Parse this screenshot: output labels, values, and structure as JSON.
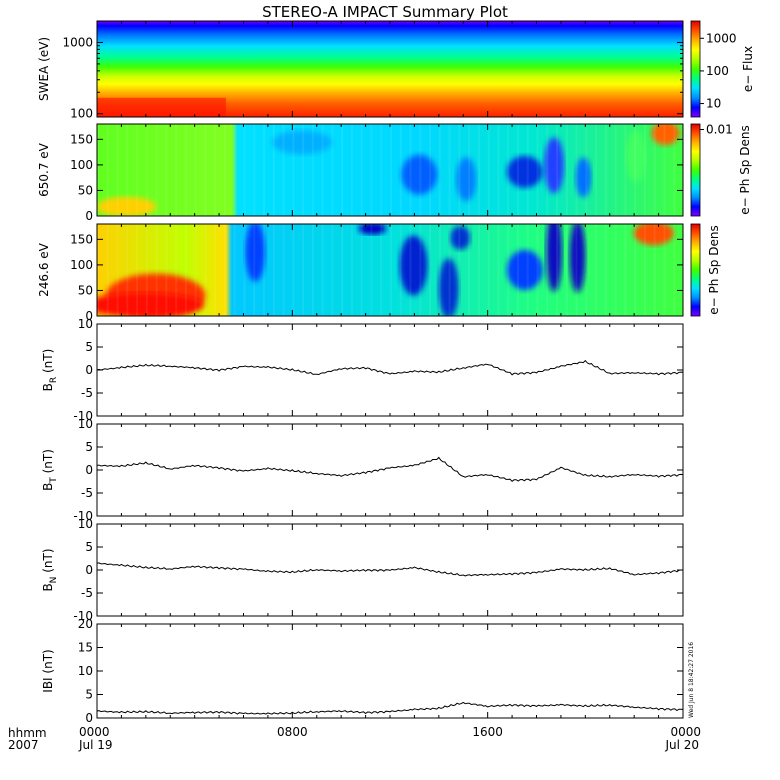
{
  "title": "STEREO-A IMPACT Summary Plot",
  "timestamp": "Wed Jun 8 18:42:27 2016",
  "bottom_left": {
    "time_label": "hhmm",
    "year_label": "2007"
  },
  "colors": {
    "spectrogram_scale": [
      "#7a00ff",
      "#0000ff",
      "#0090ff",
      "#00e0ff",
      "#00ff80",
      "#40ff00",
      "#b0ff00",
      "#ffff00",
      "#ffb000",
      "#ff5000",
      "#e00000"
    ],
    "line": "#000000"
  },
  "chart_data": [
    {
      "type": "heatmap",
      "panel": "swea",
      "ylabel": "SWEA (eV)",
      "yscale": "log",
      "ylim": [
        90,
        2000
      ],
      "yticks": [
        "100",
        "1000"
      ],
      "colorbar": {
        "label": "e− Flux",
        "scale": "log",
        "ticks": [
          "10",
          "100",
          "1000"
        ]
      }
    },
    {
      "type": "heatmap",
      "panel": "pad650",
      "ylabel": "650.7 eV",
      "ylim": [
        0,
        180
      ],
      "yticks": [
        "0",
        "50",
        "100",
        "150"
      ],
      "colorbar": {
        "label": "e− Ph Sp Dens",
        "ticks": [
          "0.01"
        ]
      }
    },
    {
      "type": "heatmap",
      "panel": "pad246",
      "ylabel": "246.6 eV",
      "ylim": [
        0,
        180
      ],
      "yticks": [
        "0",
        "50",
        "100",
        "150"
      ],
      "colorbar": {
        "label": "e− Ph Sp Dens",
        "ticks": []
      }
    },
    {
      "type": "line",
      "panel": "br",
      "ylabel": "B",
      "ylabel_sub": "R",
      "ylabel_unit": " (nT)",
      "ylim": [
        -10,
        10
      ],
      "yticks": [
        "-10",
        "-5",
        "0",
        "5",
        "10"
      ],
      "x": [
        0,
        1,
        2,
        3,
        4,
        5,
        6,
        7,
        8,
        9,
        10,
        11,
        12,
        13,
        14,
        15,
        16,
        17,
        18,
        19,
        20,
        21,
        22,
        23,
        24
      ],
      "values": [
        0.0,
        0.5,
        1.0,
        0.8,
        0.5,
        0.0,
        0.8,
        0.6,
        0.0,
        -1.0,
        0.3,
        0.5,
        -0.8,
        -0.3,
        -0.5,
        0.4,
        1.3,
        -0.8,
        -0.5,
        0.8,
        1.8,
        -0.8,
        -0.6,
        -0.8,
        -0.5
      ]
    },
    {
      "type": "line",
      "panel": "bt",
      "ylabel": "B",
      "ylabel_sub": "T",
      "ylabel_unit": " (nT)",
      "ylim": [
        -10,
        10
      ],
      "yticks": [
        "-10",
        "-5",
        "0",
        "5",
        "10"
      ],
      "x": [
        0,
        1,
        2,
        3,
        4,
        5,
        6,
        7,
        8,
        9,
        10,
        11,
        12,
        13,
        14,
        15,
        16,
        17,
        18,
        19,
        20,
        21,
        22,
        23,
        24
      ],
      "values": [
        1.0,
        0.8,
        1.5,
        0.2,
        1.0,
        0.5,
        -0.2,
        0.3,
        -0.2,
        -0.8,
        -1.2,
        -0.5,
        0.5,
        1.0,
        2.5,
        -1.5,
        -1.0,
        -2.2,
        -2.0,
        0.5,
        -1.2,
        -1.5,
        -1.0,
        -1.3,
        -1.0
      ]
    },
    {
      "type": "line",
      "panel": "bn",
      "ylabel": "B",
      "ylabel_sub": "N",
      "ylabel_unit": " (nT)",
      "ylim": [
        -10,
        10
      ],
      "yticks": [
        "-10",
        "-5",
        "0",
        "5",
        "10"
      ],
      "x": [
        0,
        1,
        2,
        3,
        4,
        5,
        6,
        7,
        8,
        9,
        10,
        11,
        12,
        13,
        14,
        15,
        16,
        17,
        18,
        19,
        20,
        21,
        22,
        23,
        24
      ],
      "values": [
        1.5,
        1.0,
        0.5,
        0.2,
        0.8,
        0.5,
        0.2,
        -0.3,
        -0.5,
        0.0,
        -0.2,
        0.0,
        0.0,
        0.5,
        -0.5,
        -1.2,
        -1.0,
        -0.8,
        -0.5,
        0.2,
        0.0,
        0.3,
        -1.0,
        -0.6,
        0.0
      ]
    },
    {
      "type": "line",
      "panel": "bmag",
      "ylabel": "IBI",
      "ylabel_sub": "",
      "ylabel_unit": " (nT)",
      "ylim": [
        0,
        20
      ],
      "yticks": [
        "0",
        "5",
        "10",
        "15",
        "20"
      ],
      "x": [
        0,
        1,
        2,
        3,
        4,
        5,
        6,
        7,
        8,
        9,
        10,
        11,
        12,
        13,
        14,
        15,
        16,
        17,
        18,
        19,
        20,
        21,
        22,
        23,
        24
      ],
      "values": [
        1.5,
        1.2,
        1.3,
        1.0,
        1.2,
        1.3,
        1.0,
        0.9,
        1.0,
        1.3,
        1.5,
        1.2,
        1.4,
        1.8,
        2.0,
        3.2,
        2.5,
        2.8,
        2.6,
        2.8,
        2.5,
        2.7,
        2.3,
        2.0,
        1.8
      ]
    }
  ],
  "x_axis": {
    "range_hours": [
      0,
      24
    ],
    "tick_labels": [
      "0000",
      "0800",
      "1600",
      "0000"
    ],
    "date_labels": [
      "Jul 19",
      "Jul 20"
    ]
  }
}
